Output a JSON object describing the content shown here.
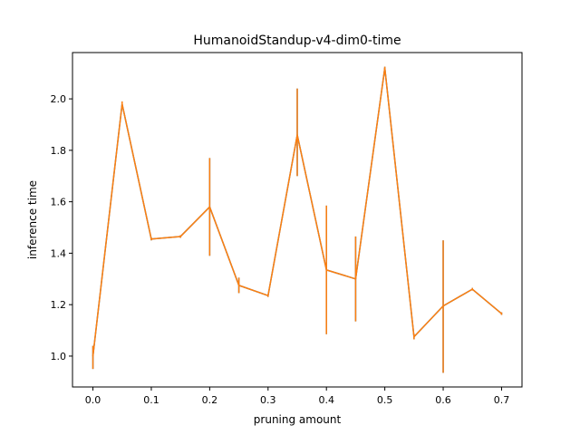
{
  "chart_data": {
    "type": "line",
    "title": "HumanoidStandup-v4-dim0-time",
    "xlabel": "pruning amount",
    "ylabel": "inference time",
    "xlim": [
      -0.035,
      0.735
    ],
    "ylim": [
      0.88,
      2.18
    ],
    "xticks": [
      0.0,
      0.1,
      0.2,
      0.3,
      0.4,
      0.5,
      0.6,
      0.7
    ],
    "xtick_labels": [
      "0.0",
      "0.1",
      "0.2",
      "0.3",
      "0.4",
      "0.5",
      "0.6",
      "0.7"
    ],
    "yticks": [
      1.0,
      1.2,
      1.4,
      1.6,
      1.8,
      2.0
    ],
    "ytick_labels": [
      "1.0",
      "1.2",
      "1.4",
      "1.6",
      "1.8",
      "2.0"
    ],
    "grid": false,
    "series": [
      {
        "color": "#1f77b4",
        "x": [
          0.0,
          0.05,
          0.1,
          0.15,
          0.2,
          0.25,
          0.3,
          0.35,
          0.4,
          0.45,
          0.5,
          0.55,
          0.6,
          0.65,
          0.7
        ],
        "y": [
          1.0,
          1.98,
          1.455,
          1.465,
          1.58,
          1.275,
          1.235,
          1.86,
          1.335,
          1.3,
          2.12,
          1.075,
          1.195,
          1.26,
          1.165
        ],
        "yerr_low": [
          0.95,
          1.97,
          1.45,
          1.46,
          1.39,
          1.245,
          1.23,
          1.7,
          1.085,
          1.135,
          2.11,
          1.065,
          0.935,
          1.255,
          1.16
        ],
        "yerr_high": [
          1.04,
          1.99,
          1.46,
          1.47,
          1.77,
          1.305,
          1.24,
          2.04,
          1.585,
          1.465,
          2.125,
          1.085,
          1.45,
          1.265,
          1.17
        ]
      },
      {
        "color": "#ff7f0e",
        "x": [
          0.0,
          0.05,
          0.1,
          0.15,
          0.2,
          0.25,
          0.3,
          0.35,
          0.4,
          0.45,
          0.5,
          0.55,
          0.6,
          0.65,
          0.7
        ],
        "y": [
          1.0,
          1.98,
          1.455,
          1.465,
          1.58,
          1.275,
          1.235,
          1.86,
          1.335,
          1.3,
          2.12,
          1.075,
          1.195,
          1.26,
          1.165
        ],
        "yerr_low": [
          0.95,
          1.97,
          1.45,
          1.46,
          1.39,
          1.245,
          1.23,
          1.7,
          1.085,
          1.135,
          2.11,
          1.065,
          0.935,
          1.255,
          1.16
        ],
        "yerr_high": [
          1.04,
          1.99,
          1.46,
          1.47,
          1.77,
          1.305,
          1.24,
          2.04,
          1.585,
          1.465,
          2.125,
          1.085,
          1.45,
          1.265,
          1.17
        ]
      }
    ]
  }
}
